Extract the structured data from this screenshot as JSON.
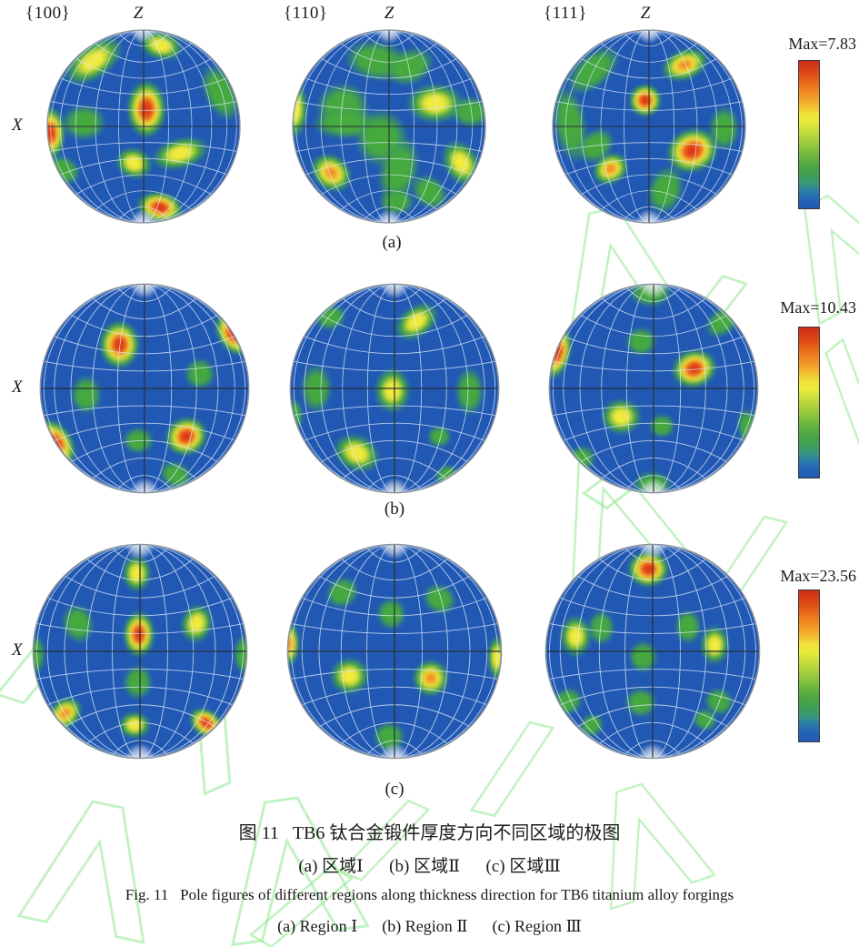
{
  "captions": {
    "zh_title": "图 11   TB6 钛合金锻件厚度方向不同区域的极图",
    "zh_sub": "(a) 区域Ⅰ      (b) 区域Ⅱ      (c) 区域Ⅲ",
    "en_title": "Fig. 11   Pole figures of different regions along thickness direction for TB6 titanium alloy forgings",
    "en_sub": "(a) Region Ⅰ      (b) Region Ⅱ      (c) Region Ⅲ"
  },
  "colors": {
    "pole_blue": "#2158b4",
    "green": "#46ab3c",
    "yellow": "#f2ea3a",
    "orange": "#f07d21",
    "red": "#da2c17",
    "grid_line": "#dce9f8",
    "axis_line": "#2b3038",
    "watermark_green": "#90e890",
    "colorbar_border": "#3a3a3a"
  },
  "chart_data": {
    "type": "heatmap",
    "subtype": "stereographic-pole-figures",
    "title": "Pole figures of different regions along thickness direction for TB6 titanium alloy forgings",
    "columns": [
      "{100}",
      "{110}",
      "{111}"
    ],
    "axes": {
      "vertical": "Z",
      "horizontal": "X"
    },
    "legend_position": "right",
    "colormap": "blue(low) → green → yellow → orange → red(high)",
    "hotspot_format": [
      "x_rel",
      "y_rel",
      "rx_rel",
      "ry_rel",
      "rot_deg",
      "intensity g|y|o|r"
    ],
    "rows": [
      {
        "tag": "(a)",
        "region_zh": "区域Ⅰ",
        "region_en": "Region Ⅰ",
        "max": 7.83,
        "max_label": "Max=7.83",
        "pole_figures": [
          {
            "plane": "{100}",
            "hotspots": [
              [
                -0.52,
                -0.68,
                0.3,
                0.16,
                -35,
                "y"
              ],
              [
                0.18,
                -0.84,
                0.2,
                0.13,
                15,
                "y"
              ],
              [
                0.03,
                -0.18,
                0.18,
                0.26,
                0,
                "r"
              ],
              [
                -0.62,
                -0.04,
                0.2,
                0.16,
                0,
                "g"
              ],
              [
                -0.97,
                0.07,
                0.14,
                0.24,
                0,
                "r"
              ],
              [
                -0.1,
                0.38,
                0.17,
                0.14,
                20,
                "y"
              ],
              [
                0.38,
                0.28,
                0.26,
                0.14,
                -15,
                "y"
              ],
              [
                0.8,
                -0.35,
                0.15,
                0.27,
                -25,
                "g"
              ],
              [
                0.17,
                0.84,
                0.21,
                0.14,
                10,
                "r"
              ],
              [
                -0.83,
                0.45,
                0.16,
                0.12,
                30,
                "g"
              ]
            ]
          },
          {
            "plane": "{110}",
            "hotspots": [
              [
                -0.12,
                -0.68,
                0.3,
                0.18,
                10,
                "g"
              ],
              [
                0.22,
                -0.62,
                0.22,
                0.16,
                -25,
                "g"
              ],
              [
                -0.48,
                -0.2,
                0.24,
                0.22,
                0,
                "g"
              ],
              [
                -0.98,
                -0.18,
                0.12,
                0.26,
                0,
                "y"
              ],
              [
                0.48,
                -0.24,
                0.26,
                0.18,
                0,
                "y"
              ],
              [
                0.85,
                -0.15,
                0.18,
                0.14,
                0,
                "g"
              ],
              [
                -0.45,
                -0.03,
                0.3,
                0.14,
                0,
                "g"
              ],
              [
                -0.08,
                0.12,
                0.24,
                0.26,
                0,
                "g"
              ],
              [
                0.1,
                0.45,
                0.18,
                0.3,
                15,
                "g"
              ],
              [
                -0.6,
                0.48,
                0.2,
                0.16,
                35,
                "o"
              ],
              [
                0.75,
                0.38,
                0.16,
                0.22,
                -30,
                "y"
              ],
              [
                0.42,
                0.68,
                0.18,
                0.14,
                40,
                "g"
              ],
              [
                0.08,
                0.78,
                0.16,
                0.12,
                0,
                "g"
              ]
            ]
          },
          {
            "plane": "{111}",
            "hotspots": [
              [
                -0.58,
                -0.58,
                0.28,
                0.15,
                -40,
                "g"
              ],
              [
                0.37,
                -0.64,
                0.22,
                0.14,
                -20,
                "o"
              ],
              [
                -0.04,
                -0.27,
                0.15,
                0.15,
                0,
                "r"
              ],
              [
                -0.82,
                -0.02,
                0.15,
                0.35,
                -10,
                "g"
              ],
              [
                0.45,
                0.25,
                0.24,
                0.2,
                -20,
                "r"
              ],
              [
                -0.4,
                0.44,
                0.17,
                0.14,
                -30,
                "o"
              ],
              [
                -0.55,
                0.2,
                0.18,
                0.14,
                -40,
                "g"
              ],
              [
                0.17,
                0.66,
                0.16,
                0.22,
                20,
                "g"
              ],
              [
                0.78,
                0.02,
                0.14,
                0.2,
                0,
                "g"
              ]
            ]
          }
        ]
      },
      {
        "tag": "(b)",
        "region_zh": "区域Ⅱ",
        "region_en": "Region Ⅱ",
        "max": 10.43,
        "max_label": "Max=10.43",
        "pole_figures": [
          {
            "plane": "{100}",
            "hotspots": [
              [
                -0.24,
                -0.42,
                0.17,
                0.2,
                0,
                "r"
              ],
              [
                0.85,
                -0.52,
                0.13,
                0.2,
                -35,
                "r"
              ],
              [
                0.53,
                -0.14,
                0.13,
                0.13,
                0,
                "g"
              ],
              [
                -0.56,
                0.06,
                0.13,
                0.16,
                0,
                "g"
              ],
              [
                -0.85,
                0.52,
                0.14,
                0.22,
                -35,
                "r"
              ],
              [
                0.4,
                0.46,
                0.18,
                0.16,
                -20,
                "r"
              ],
              [
                -0.06,
                0.5,
                0.13,
                0.11,
                0,
                "g"
              ],
              [
                0.3,
                0.83,
                0.14,
                0.11,
                25,
                "g"
              ]
            ]
          },
          {
            "plane": "{110}",
            "hotspots": [
              [
                0.21,
                -0.64,
                0.2,
                0.13,
                -35,
                "y"
              ],
              [
                -0.61,
                -0.68,
                0.13,
                0.1,
                -20,
                "g"
              ],
              [
                -0.75,
                0.0,
                0.13,
                0.2,
                0,
                "g"
              ],
              [
                -0.02,
                0.02,
                0.15,
                0.19,
                0,
                "y"
              ],
              [
                0.72,
                0.03,
                0.12,
                0.2,
                0,
                "g"
              ],
              [
                -0.36,
                0.62,
                0.2,
                0.15,
                25,
                "y"
              ],
              [
                0.43,
                0.46,
                0.1,
                0.09,
                0,
                "g"
              ],
              [
                -0.96,
                0.26,
                0.07,
                0.14,
                0,
                "g"
              ],
              [
                0.5,
                0.83,
                0.1,
                0.08,
                -30,
                "g"
              ]
            ]
          },
          {
            "plane": "{111}",
            "hotspots": [
              [
                -0.03,
                -0.92,
                0.18,
                0.12,
                0,
                "g"
              ],
              [
                -0.12,
                -0.45,
                0.13,
                0.12,
                0,
                "g"
              ],
              [
                -0.92,
                -0.34,
                0.11,
                0.22,
                15,
                "r"
              ],
              [
                0.39,
                -0.19,
                0.19,
                0.16,
                -15,
                "r"
              ],
              [
                0.66,
                -0.64,
                0.16,
                0.11,
                -40,
                "g"
              ],
              [
                -0.31,
                0.27,
                0.17,
                0.15,
                0,
                "y"
              ],
              [
                0.08,
                0.36,
                0.11,
                0.1,
                0,
                "g"
              ],
              [
                0.92,
                0.39,
                0.1,
                0.18,
                -15,
                "g"
              ],
              [
                -0.7,
                0.68,
                0.13,
                0.11,
                -30,
                "g"
              ],
              [
                -0.01,
                0.92,
                0.16,
                0.11,
                0,
                "g"
              ]
            ]
          }
        ]
      },
      {
        "tag": "(c)",
        "region_zh": "区域Ⅲ",
        "region_en": "Region Ⅲ",
        "max": 23.56,
        "max_label": "Max=23.56",
        "pole_figures": [
          {
            "plane": "{100}",
            "hotspots": [
              [
                -0.03,
                -0.73,
                0.12,
                0.15,
                0,
                "y"
              ],
              [
                -0.58,
                -0.26,
                0.13,
                0.16,
                -15,
                "g"
              ],
              [
                -0.01,
                -0.16,
                0.13,
                0.19,
                0,
                "r"
              ],
              [
                0.53,
                -0.26,
                0.13,
                0.16,
                15,
                "y"
              ],
              [
                -0.98,
                0.03,
                0.08,
                0.16,
                0,
                "g"
              ],
              [
                0.97,
                0.03,
                0.08,
                0.16,
                0,
                "g"
              ],
              [
                -0.02,
                0.29,
                0.12,
                0.14,
                0,
                "g"
              ],
              [
                -0.7,
                0.58,
                0.15,
                0.12,
                -40,
                "o"
              ],
              [
                -0.05,
                0.69,
                0.13,
                0.11,
                0,
                "y"
              ],
              [
                0.62,
                0.67,
                0.15,
                0.11,
                35,
                "r"
              ]
            ]
          },
          {
            "plane": "{110}",
            "hotspots": [
              [
                -0.49,
                -0.55,
                0.14,
                0.12,
                -30,
                "g"
              ],
              [
                -0.03,
                -0.35,
                0.12,
                0.13,
                0,
                "g"
              ],
              [
                0.42,
                -0.49,
                0.14,
                0.12,
                30,
                "g"
              ],
              [
                -0.98,
                -0.07,
                0.08,
                0.18,
                0,
                "o"
              ],
              [
                0.96,
                0.06,
                0.08,
                0.18,
                0,
                "y"
              ],
              [
                -0.42,
                0.23,
                0.16,
                0.15,
                0,
                "y"
              ],
              [
                0.34,
                0.25,
                0.15,
                0.15,
                0,
                "o"
              ],
              [
                -0.05,
                0.8,
                0.13,
                0.12,
                0,
                "g"
              ]
            ]
          },
          {
            "plane": "{111}",
            "hotspots": [
              [
                -0.04,
                -0.77,
                0.17,
                0.15,
                0,
                "r"
              ],
              [
                -0.72,
                -0.14,
                0.13,
                0.17,
                0,
                "y"
              ],
              [
                -0.48,
                -0.22,
                0.11,
                0.14,
                0,
                "g"
              ],
              [
                0.33,
                -0.23,
                0.11,
                0.14,
                0,
                "g"
              ],
              [
                0.58,
                -0.06,
                0.12,
                0.16,
                0,
                "y"
              ],
              [
                -0.09,
                0.05,
                0.12,
                0.13,
                0,
                "g"
              ],
              [
                -0.8,
                0.47,
                0.13,
                0.11,
                -25,
                "g"
              ],
              [
                -0.11,
                0.48,
                0.13,
                0.12,
                0,
                "g"
              ],
              [
                0.62,
                0.47,
                0.12,
                0.11,
                25,
                "g"
              ],
              [
                -0.57,
                0.69,
                0.1,
                0.09,
                -30,
                "g"
              ],
              [
                0.49,
                0.64,
                0.1,
                0.09,
                25,
                "g"
              ]
            ]
          }
        ]
      }
    ],
    "colorbars": [
      {
        "row": "(a)",
        "max_label": "Max=7.83"
      },
      {
        "row": "(b)",
        "max_label": "Max=10.43"
      },
      {
        "row": "(c)",
        "max_label": "Max=23.56"
      }
    ]
  }
}
